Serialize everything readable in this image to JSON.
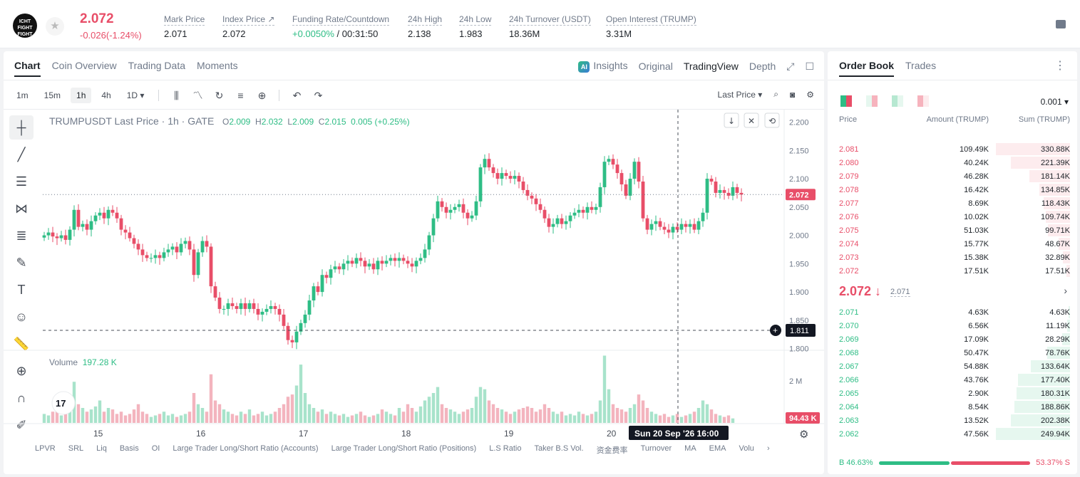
{
  "header": {
    "logo_text": "ICHT FIGHT FIGHT",
    "price": "2.072",
    "change": "-0.026(-1.24%)",
    "stats": [
      {
        "label": "Mark Price",
        "value": "2.071",
        "x": 230
      },
      {
        "label": "Index Price ↗",
        "value": "2.072",
        "x": 312
      },
      {
        "label": "Funding Rate/Countdown",
        "value": "+0.0050%",
        "value2": " / 00:31:50",
        "x": 410
      },
      {
        "label": "24h High",
        "value": "2.138",
        "x": 572
      },
      {
        "label": "24h Low",
        "value": "1.983",
        "x": 644
      },
      {
        "label": "24h Turnover (USDT)",
        "value": "18.36M",
        "x": 714
      },
      {
        "label": "Open Interest (TRUMP)",
        "value": "3.31M",
        "x": 850
      }
    ]
  },
  "chart_tabs": [
    "Chart",
    "Coin Overview",
    "Trading Data",
    "Moments"
  ],
  "chart_views": {
    "insights": "Insights",
    "original": "Original",
    "tradingview": "TradingView",
    "depth": "Depth",
    "ai": "AI"
  },
  "timeframes": [
    "1m",
    "15m",
    "1h",
    "4h",
    "1D ▾"
  ],
  "toolbar_right": {
    "price_type": "Last Price"
  },
  "legend": {
    "symbol": "TRUMPUSDT Last Price · 1h · GATE",
    "o_label": "O",
    "o": "2.009",
    "h_label": "H",
    "h": "2.032",
    "l_label": "L",
    "l": "2.009",
    "c_label": "C",
    "c": "2.015",
    "chg": "0.005 (+0.25%)"
  },
  "volume_legend": {
    "label": "Volume",
    "value": "197.28 K"
  },
  "indicators": [
    "LPVR",
    "SRL",
    "Liq",
    "Basis",
    "OI",
    "Large Trader Long/Short Ratio (Accounts)",
    "Large Trader Long/Short Ratio (Positions)",
    "L.S Ratio",
    "Taker B.S Vol.",
    "资金费率",
    "Turnover",
    "MA",
    "EMA",
    "Volu",
    "›"
  ],
  "chart_data": {
    "type": "candlestick",
    "title": "TRUMPUSDT Last Price · 1h · GATE",
    "y_ticks": [
      "2.200",
      "2.150",
      "2.100",
      "2.050",
      "2.000",
      "1.950",
      "1.900",
      "1.850",
      "1.800"
    ],
    "ylim": [
      1.797,
      2.222
    ],
    "x_ticks": [
      "15",
      "16",
      "17",
      "18",
      "19",
      "20"
    ],
    "last_price_label": "2.072",
    "crosshair_price_label": "1.811",
    "crosshair_time_label": "Sun 20 Sep '26   16:00",
    "volume_axis_label": "2 M",
    "volume_last_label": "94.43 K",
    "closes": [
      2.0,
      2.005,
      1.998,
      1.995,
      2.0,
      1.992,
      2.01,
      2.045,
      2.015,
      2.02,
      2.01,
      2.025,
      2.035,
      2.04,
      2.03,
      2.045,
      2.04,
      2.03,
      2.01,
      2.005,
      1.995,
      1.985,
      1.975,
      1.965,
      1.96,
      1.96,
      1.965,
      1.96,
      1.97,
      1.975,
      1.98,
      1.97,
      1.985,
      1.99,
      1.975,
      1.93,
      1.97,
      1.99,
      1.98,
      1.91,
      1.89,
      1.87,
      1.87,
      1.88,
      1.875,
      1.87,
      1.88,
      1.87,
      1.88,
      1.87,
      1.86,
      1.865,
      1.87,
      1.875,
      1.87,
      1.86,
      1.84,
      1.815,
      1.811,
      1.83,
      1.845,
      1.86,
      1.885,
      1.91,
      1.9,
      1.93,
      1.925,
      1.94,
      1.945,
      1.94,
      1.95,
      1.955,
      1.95,
      1.96,
      1.955,
      1.945,
      1.95,
      1.94,
      1.955,
      1.95,
      1.955,
      1.96,
      1.955,
      1.96,
      1.955,
      1.95,
      1.945,
      1.955,
      1.96,
      1.975,
      2.0,
      2.03,
      2.06,
      2.05,
      2.04,
      2.045,
      2.05,
      2.055,
      2.04,
      2.03,
      2.035,
      2.06,
      2.12,
      2.135,
      2.12,
      2.11,
      2.1,
      2.11,
      2.105,
      2.1,
      2.105,
      2.095,
      2.08,
      2.07,
      2.065,
      2.055,
      2.045,
      2.03,
      2.015,
      2.02,
      2.03,
      2.02,
      2.025,
      2.035,
      2.04,
      2.045,
      2.04,
      2.05,
      2.045,
      2.05,
      2.085,
      2.13,
      2.135,
      2.125,
      2.11,
      2.09,
      2.07,
      2.1,
      2.13,
      2.095,
      2.03,
      2.01,
      2.02,
      2.025,
      2.015,
      2.01,
      2.005,
      2.015,
      2.01,
      2.02,
      2.015,
      2.02,
      2.01,
      2.025,
      2.04,
      2.1,
      2.095,
      2.075,
      2.08,
      2.075,
      2.07,
      2.085,
      2.075,
      2.072
    ],
    "volumes": [
      0.12,
      0.1,
      0.15,
      0.18,
      0.1,
      0.22,
      0.35,
      0.55,
      0.25,
      0.2,
      0.15,
      0.18,
      0.22,
      0.3,
      0.15,
      0.2,
      0.18,
      0.12,
      0.15,
      0.1,
      0.12,
      0.18,
      0.25,
      0.15,
      0.12,
      0.08,
      0.1,
      0.12,
      0.15,
      0.1,
      0.12,
      0.08,
      0.1,
      0.12,
      0.15,
      0.4,
      0.25,
      0.2,
      0.15,
      0.65,
      0.3,
      0.25,
      0.18,
      0.15,
      0.12,
      0.1,
      0.15,
      0.12,
      0.18,
      0.1,
      0.12,
      0.15,
      0.1,
      0.12,
      0.15,
      0.2,
      0.25,
      0.35,
      0.38,
      0.5,
      0.78,
      0.4,
      0.25,
      0.2,
      0.15,
      0.18,
      0.12,
      0.15,
      0.12,
      0.1,
      0.12,
      0.08,
      0.1,
      0.12,
      0.15,
      0.1,
      0.08,
      0.1,
      0.12,
      0.18,
      0.15,
      0.12,
      0.1,
      0.2,
      0.15,
      0.25,
      0.2,
      0.15,
      0.22,
      0.3,
      0.35,
      0.4,
      0.48,
      0.25,
      0.2,
      0.18,
      0.15,
      0.12,
      0.15,
      0.18,
      0.2,
      0.35,
      0.48,
      0.45,
      0.3,
      0.25,
      0.2,
      0.18,
      0.15,
      0.12,
      0.15,
      0.18,
      0.2,
      0.22,
      0.2,
      0.15,
      0.18,
      0.25,
      0.2,
      0.15,
      0.12,
      0.15,
      0.1,
      0.12,
      0.1,
      0.15,
      0.12,
      0.1,
      0.12,
      0.15,
      0.3,
      0.9,
      0.45,
      0.25,
      0.2,
      0.18,
      0.15,
      0.2,
      0.25,
      0.38,
      0.3,
      0.2,
      0.15,
      0.12,
      0.1,
      0.12,
      0.08,
      0.1,
      0.12,
      0.08,
      0.1,
      0.12,
      0.15,
      0.2,
      0.3,
      0.25,
      0.18,
      0.12,
      0.1,
      0.08,
      0.1,
      0.06
    ]
  },
  "orderbook": {
    "tabs": [
      "Order Book",
      "Trades"
    ],
    "precision": "0.001",
    "headers": {
      "price": "Price",
      "amount": "Amount (TRUMP)",
      "sum": "Sum (TRUMP)"
    },
    "asks": [
      {
        "price": "2.081",
        "amount": "109.49K",
        "sum": "330.88K",
        "depth": 1.0
      },
      {
        "price": "2.080",
        "amount": "40.24K",
        "sum": "221.39K",
        "depth": 0.8
      },
      {
        "price": "2.079",
        "amount": "46.28K",
        "sum": "181.14K",
        "depth": 0.55
      },
      {
        "price": "2.078",
        "amount": "16.42K",
        "sum": "134.85K",
        "depth": 0.41
      },
      {
        "price": "2.077",
        "amount": "8.69K",
        "sum": "118.43K",
        "depth": 0.36
      },
      {
        "price": "2.076",
        "amount": "10.02K",
        "sum": "109.74K",
        "depth": 0.33
      },
      {
        "price": "2.075",
        "amount": "51.03K",
        "sum": "99.71K",
        "depth": 0.3
      },
      {
        "price": "2.074",
        "amount": "15.77K",
        "sum": "48.67K",
        "depth": 0.15
      },
      {
        "price": "2.073",
        "amount": "15.38K",
        "sum": "32.89K",
        "depth": 0.1
      },
      {
        "price": "2.072",
        "amount": "17.51K",
        "sum": "17.51K",
        "depth": 0.05
      }
    ],
    "last_price": "2.072 ↓",
    "mark_price": "2.071",
    "bids": [
      {
        "price": "2.071",
        "amount": "4.63K",
        "sum": "4.63K",
        "depth": 0.02
      },
      {
        "price": "2.070",
        "amount": "6.56K",
        "sum": "11.19K",
        "depth": 0.04
      },
      {
        "price": "2.069",
        "amount": "17.09K",
        "sum": "28.29K",
        "depth": 0.11
      },
      {
        "price": "2.068",
        "amount": "50.47K",
        "sum": "78.76K",
        "depth": 0.31
      },
      {
        "price": "2.067",
        "amount": "54.88K",
        "sum": "133.64K",
        "depth": 0.53
      },
      {
        "price": "2.066",
        "amount": "43.76K",
        "sum": "177.40K",
        "depth": 0.7
      },
      {
        "price": "2.065",
        "amount": "2.90K",
        "sum": "180.31K",
        "depth": 0.72
      },
      {
        "price": "2.064",
        "amount": "8.54K",
        "sum": "188.86K",
        "depth": 0.75
      },
      {
        "price": "2.063",
        "amount": "13.52K",
        "sum": "202.38K",
        "depth": 0.8
      },
      {
        "price": "2.062",
        "amount": "47.56K",
        "sum": "249.94K",
        "depth": 1.0
      }
    ],
    "buy_ratio": "B 46.63%",
    "sell_ratio": "53.37% S",
    "buy_fraction": 0.4663
  },
  "colors": {
    "up": "#2ebd85",
    "down": "#e84e68",
    "up_bg": "#e6f7ef",
    "down_bg": "#fdecee"
  }
}
